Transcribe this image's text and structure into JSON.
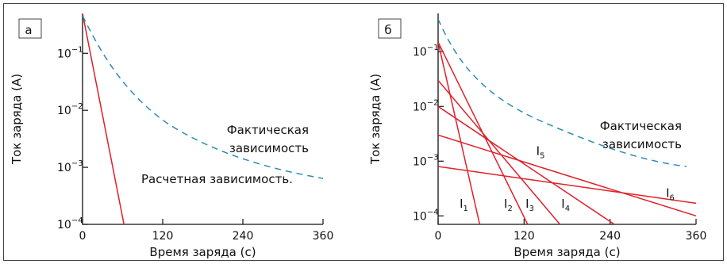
{
  "chart_data": [
    {
      "type": "line",
      "panel": "а",
      "xlabel": "Время заряда (с)",
      "ylabel": "Ток заряда (А)",
      "xlim": [
        0,
        360
      ],
      "ylim": [
        0.0001,
        0.5
      ],
      "ylog": true,
      "xticks": [
        "0",
        "120",
        "240",
        "360"
      ],
      "yticks": [
        {
          "value": 0.1,
          "base": "10",
          "exp": "−1"
        },
        {
          "value": 0.01,
          "base": "10",
          "exp": "−2"
        },
        {
          "value": 0.001,
          "base": "10",
          "exp": "−3"
        },
        {
          "value": 0.0001,
          "base": "10",
          "exp": "−4"
        }
      ],
      "annotations": [
        "Фактическая",
        "зависимость",
        "Расчетная зависимость."
      ],
      "series": [
        {
          "style": "calc",
          "color": "#e0202a",
          "x": [
            0,
            62
          ],
          "y": [
            0.5,
            0.0001
          ]
        },
        {
          "style": "actual",
          "color": "#2b8ab8",
          "x": [
            0,
            20,
            40,
            60,
            80,
            100,
            130,
            160,
            200,
            250,
            300,
            360
          ],
          "y": [
            0.5,
            0.15,
            0.06,
            0.026,
            0.013,
            0.0075,
            0.0042,
            0.0027,
            0.0018,
            0.0012,
            0.00088,
            0.00065
          ]
        }
      ]
    },
    {
      "type": "line",
      "panel": "б",
      "xlabel": "Время заряда (с)",
      "ylabel": "Ток заряда (А)",
      "xlim": [
        0,
        360
      ],
      "ylim": [
        7e-05,
        0.5
      ],
      "ylog": true,
      "xticks": [
        "0",
        "120",
        "240",
        "360"
      ],
      "yticks": [
        {
          "value": 0.1,
          "base": "10",
          "exp": "−1"
        },
        {
          "value": 0.01,
          "base": "10",
          "exp": "−2"
        },
        {
          "value": 0.001,
          "base": "10",
          "exp": "−3"
        },
        {
          "value": 0.0001,
          "base": "10",
          "exp": "−4"
        }
      ],
      "annotations": [
        "Фактическая",
        "зависимость"
      ],
      "series": [
        {
          "style": "actual",
          "color": "#2b8ab8",
          "x": [
            0,
            20,
            40,
            60,
            80,
            100,
            130,
            160,
            200,
            250,
            300,
            360
          ],
          "y": [
            0.5,
            0.2,
            0.08,
            0.035,
            0.016,
            0.0085,
            0.0042,
            0.0024,
            0.0014,
            0.0009,
            0.0007,
            0.00054
          ]
        },
        {
          "name": "I1",
          "base": "I",
          "sub": "1",
          "style": "calc",
          "color": "#e0202a",
          "x": [
            0,
            58
          ],
          "y": [
            0.15,
            7e-05
          ],
          "label_at": [
            30,
            0.00014
          ]
        },
        {
          "name": "I2",
          "base": "I",
          "sub": "2",
          "style": "calc",
          "color": "#e0202a",
          "x": [
            0,
            125
          ],
          "y": [
            0.15,
            7e-05
          ],
          "label_at": [
            92,
            0.00014
          ]
        },
        {
          "name": "I3",
          "base": "I",
          "sub": "3",
          "style": "calc",
          "color": "#e0202a",
          "x": [
            0,
            170
          ],
          "y": [
            0.03,
            7e-05
          ],
          "label_at": [
            122,
            0.00014
          ]
        },
        {
          "name": "I4",
          "base": "I",
          "sub": "4",
          "style": "calc",
          "color": "#e0202a",
          "x": [
            0,
            246
          ],
          "y": [
            0.01,
            7e-05
          ],
          "label_at": [
            172,
            0.00014
          ]
        },
        {
          "name": "I5",
          "base": "I",
          "sub": "5",
          "style": "calc",
          "color": "#e0202a",
          "x": [
            0,
            360
          ],
          "y": [
            0.003,
            0.0001
          ],
          "label_at": [
            137,
            0.0013
          ]
        },
        {
          "name": "I6",
          "base": "I",
          "sub": "6",
          "style": "calc",
          "color": "#e0202a",
          "x": [
            0,
            360
          ],
          "y": [
            0.0008,
            0.00017
          ],
          "label_at": [
            318,
            0.00022
          ]
        }
      ]
    }
  ]
}
